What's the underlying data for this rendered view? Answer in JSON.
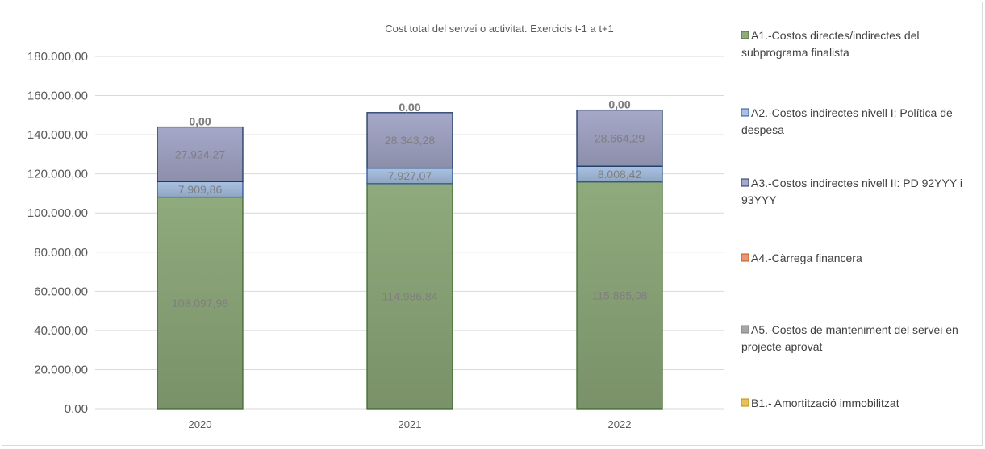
{
  "chart_data": {
    "type": "bar",
    "stacked": true,
    "title": "Cost total del servei o activitat. Exercicis t-1 a t+1",
    "categories": [
      "2020",
      "2021",
      "2022"
    ],
    "ylim": [
      0,
      180000
    ],
    "yticks": [
      0,
      20000,
      40000,
      60000,
      80000,
      100000,
      120000,
      140000,
      160000,
      180000
    ],
    "ytick_labels": [
      "0,00",
      "20.000,00",
      "40.000,00",
      "60.000,00",
      "80.000,00",
      "100.000,00",
      "120.000,00",
      "140.000,00",
      "160.000,00",
      "180.000,00"
    ],
    "grid": true,
    "legend_position": "right",
    "series": [
      {
        "name": "A1.-Costos directes/indirectes del subprograma finalista",
        "color": "#8faa7c",
        "values": [
          108097.98,
          114986.84,
          115885.08
        ],
        "labels": [
          "108.097,98",
          "114.986,84",
          "115.885,08"
        ]
      },
      {
        "name": "A2.-Costos indirectes nivell I: Política de despesa",
        "color": "#a9c2e3",
        "values": [
          7909.86,
          7927.07,
          8008.42
        ],
        "labels": [
          "7.909,86",
          "7.927,07",
          "8.008,42"
        ]
      },
      {
        "name": "A3.-Costos indirectes nivell II: PD 92YYY i 93YYY",
        "color": "#a5a8c8",
        "values": [
          27924.27,
          28343.28,
          28664.29
        ],
        "labels": [
          "27.924,27",
          "28.343,28",
          "28.664,29"
        ]
      },
      {
        "name": "A4.-Càrrega financera",
        "color": "#e8967a",
        "values": [
          0,
          0,
          0
        ],
        "labels": [
          "0,00",
          "0,00",
          "0,00"
        ]
      },
      {
        "name": "A5.-Costos de manteniment del servei en projecte aprovat",
        "color": "#a6a6a6",
        "values": [
          0,
          0,
          0
        ],
        "labels": [
          "0,00",
          "0,00",
          "0,00"
        ]
      },
      {
        "name": "B1.- Amortització immobilitzat",
        "color": "#e6c25c",
        "values": [
          0,
          0,
          0
        ],
        "labels": [
          "0,00",
          "0,00",
          "0,00"
        ]
      }
    ]
  }
}
